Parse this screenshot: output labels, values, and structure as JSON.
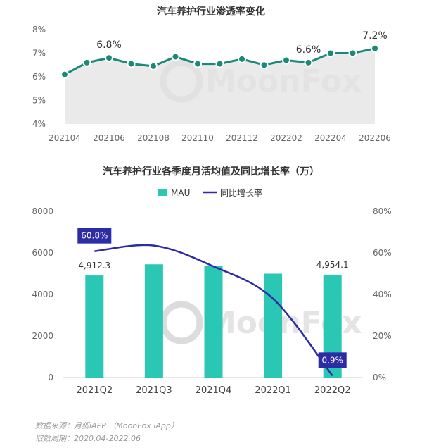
{
  "colors": {
    "line1": "#1a8a77",
    "area1": "#e3e3e3",
    "bar": "#2ac7b5",
    "line2": "#2d2ba5",
    "axis": "#666666",
    "title": "#333333"
  },
  "chart_data": [
    {
      "type": "line",
      "title": "汽车养护行业渗透率变化",
      "x": [
        "202104",
        "202105",
        "202106",
        "202107",
        "202108",
        "202109",
        "202110",
        "202111",
        "202112",
        "202201",
        "202202",
        "202203",
        "202204",
        "202205",
        "202206"
      ],
      "xtick_labels": [
        "202104",
        "202106",
        "202108",
        "202110",
        "202112",
        "202202",
        "202204",
        "202206"
      ],
      "series": [
        {
          "name": "",
          "values": [
            6.1,
            6.6,
            6.8,
            6.55,
            6.45,
            6.85,
            6.55,
            6.55,
            6.75,
            6.5,
            6.7,
            6.6,
            7.0,
            7.0,
            7.2
          ]
        }
      ],
      "point_labels": [
        {
          "index": 2,
          "text": "6.8%"
        },
        {
          "index": 11,
          "text": "6.6%"
        },
        {
          "index": 14,
          "text": "7.2%"
        }
      ],
      "ylim": [
        4,
        8
      ],
      "yticks": [
        "4%",
        "5%",
        "6%",
        "7%",
        "8%"
      ],
      "xlabel": "",
      "ylabel": ""
    },
    {
      "type": "bar",
      "title": "汽车养护行业各季度月活均值及同比增长率（万）",
      "categories": [
        "2021Q2",
        "2021Q3",
        "2021Q4",
        "2022Q1",
        "2022Q2"
      ],
      "series": [
        {
          "name": "MAU",
          "type": "bar",
          "axis": "left",
          "values": [
            4912.3,
            5450,
            5380,
            5000,
            4954.1
          ]
        },
        {
          "name": "同比增长率",
          "type": "line",
          "axis": "right",
          "values": [
            60.8,
            63.5,
            53.5,
            38,
            0.9
          ]
        }
      ],
      "bar_labels": [
        {
          "index": 0,
          "text": "4,912.3"
        },
        {
          "index": 4,
          "text": "4,954.1"
        }
      ],
      "line_labels": [
        {
          "index": 0,
          "text": "60.8%"
        },
        {
          "index": 4,
          "text": "0.9%"
        }
      ],
      "ylim_left": [
        0,
        8000
      ],
      "yticks_left": [
        "0",
        "2000",
        "4000",
        "6000",
        "8000"
      ],
      "ylim_right": [
        0,
        80
      ],
      "yticks_right": [
        "0%",
        "20%",
        "40%",
        "60%",
        "80%"
      ],
      "legend": "top-center",
      "xlabel": "",
      "ylabel": ""
    }
  ],
  "footer": {
    "source": "数据来源：月狐iAPP （MoonFox iApp）",
    "period": "取数周期：2020.04-2022.06"
  },
  "watermark": "MoonFox"
}
